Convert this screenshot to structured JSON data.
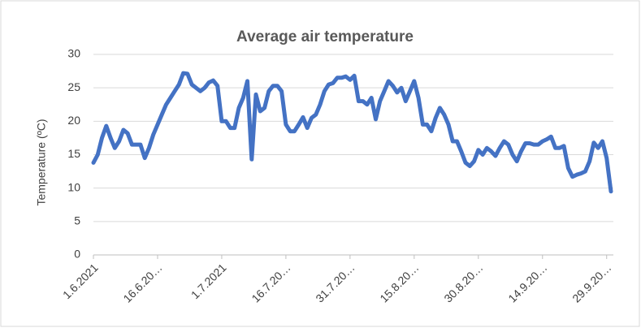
{
  "chart_data": {
    "type": "line",
    "title": "Average air temperature",
    "y_label": "Temperature  (ºC)",
    "categories": [
      "1.6.2021",
      null,
      null,
      null,
      null,
      null,
      null,
      null,
      null,
      null,
      null,
      null,
      null,
      null,
      null,
      "16.6.20…",
      null,
      null,
      null,
      null,
      null,
      null,
      null,
      null,
      null,
      null,
      null,
      null,
      null,
      null,
      "1.7.2021",
      null,
      null,
      null,
      null,
      null,
      null,
      null,
      null,
      null,
      null,
      null,
      null,
      null,
      null,
      "16.7.20…",
      null,
      null,
      null,
      null,
      null,
      null,
      null,
      null,
      null,
      null,
      null,
      null,
      null,
      null,
      "31.7.20…",
      null,
      null,
      null,
      null,
      null,
      null,
      null,
      null,
      null,
      null,
      null,
      null,
      null,
      null,
      "15.8.20…",
      null,
      null,
      null,
      null,
      null,
      null,
      null,
      null,
      null,
      null,
      null,
      null,
      null,
      null,
      "30.8.20…",
      null,
      null,
      null,
      null,
      null,
      null,
      null,
      null,
      null,
      null,
      null,
      null,
      null,
      null,
      "14.9.20…",
      null,
      null,
      null,
      null,
      null,
      null,
      null,
      null,
      null,
      null,
      null,
      null,
      null,
      null,
      "29.9.20…",
      null
    ],
    "values": [
      13.8,
      15,
      17.5,
      19.3,
      17.5,
      16,
      17,
      18.7,
      18.2,
      16.5,
      16.5,
      16.5,
      14.5,
      16,
      18,
      19.5,
      21,
      22.5,
      23.5,
      24.5,
      25.5,
      27.2,
      27.1,
      25.5,
      25,
      24.5,
      25,
      25.8,
      26.1,
      25.3,
      20,
      20,
      19,
      19,
      22,
      23.5,
      26,
      14.3,
      24,
      21.5,
      22,
      24.5,
      25.3,
      25.3,
      24.5,
      19.5,
      18.5,
      18.5,
      19.5,
      20.6,
      19,
      20.5,
      21,
      22.5,
      24.5,
      25.5,
      25.7,
      26.5,
      26.5,
      26.7,
      26.2,
      26.8,
      23,
      23,
      22.5,
      23.5,
      20.3,
      23,
      24.5,
      26,
      25.3,
      24.3,
      25,
      23,
      24.5,
      26,
      23.5,
      19.5,
      19.5,
      18.5,
      20.5,
      22,
      21,
      19.5,
      17,
      17,
      15.5,
      13.8,
      13.3,
      14,
      15.7,
      15,
      16,
      15.5,
      14.8,
      16,
      17,
      16.5,
      15,
      14,
      15.5,
      16.7,
      16.7,
      16.5,
      16.5,
      17,
      17.3,
      17.7,
      16,
      16,
      16.3,
      13,
      11.7,
      12,
      12.2,
      12.5,
      14,
      16.8,
      16,
      17,
      14.5,
      9.5
    ],
    "color": "#4472c4",
    "ylim": [
      0,
      30
    ],
    "yticks": [
      0,
      5,
      10,
      15,
      20,
      25,
      30
    ],
    "grid": true
  }
}
